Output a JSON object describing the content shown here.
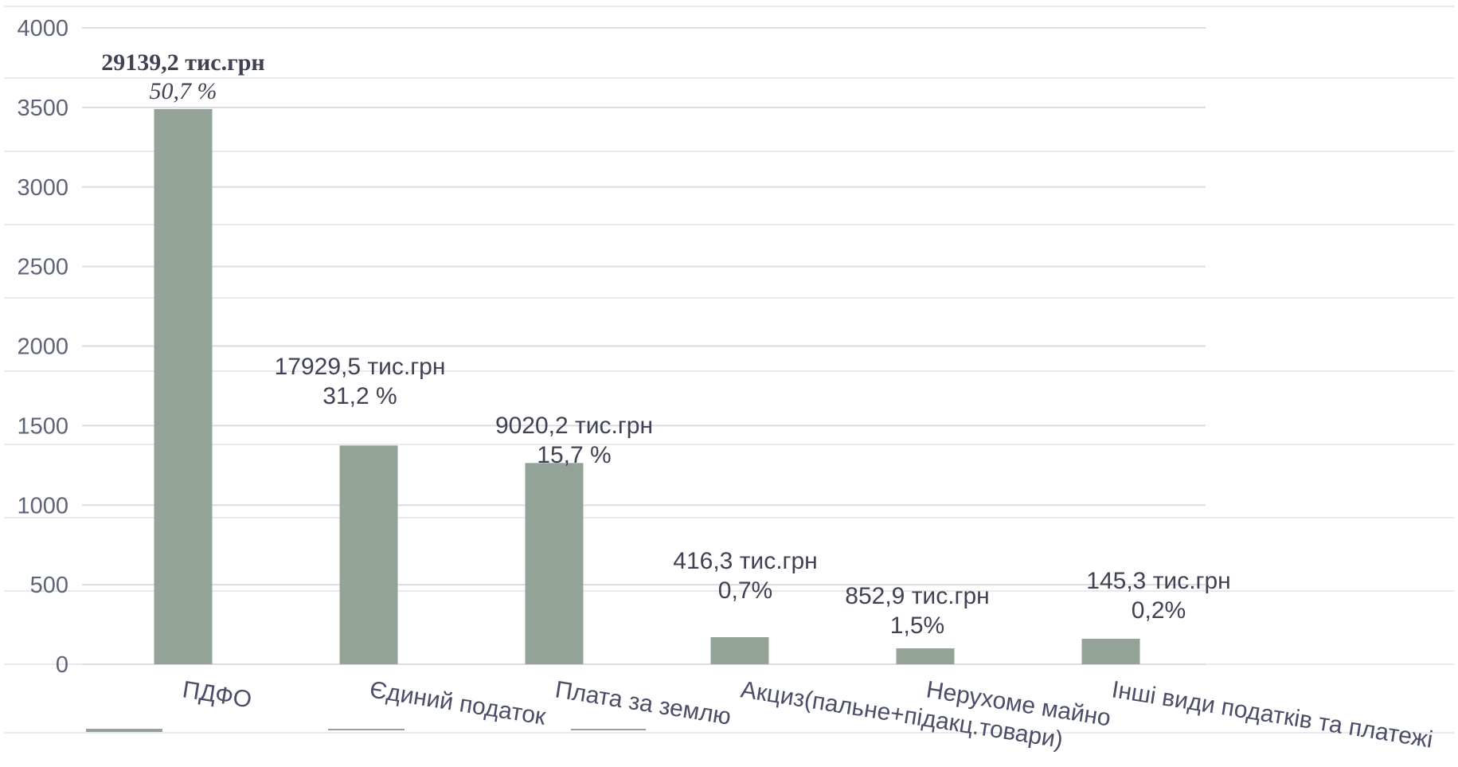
{
  "chart_data": {
    "type": "bar",
    "categories": [
      "ПДФО",
      "Єдиний податок",
      "Плата за землю",
      "Акциз(пальне+підакц.товари)",
      "Нерухоме майно",
      "Інші види податків та платежі"
    ],
    "values": [
      3490,
      1375,
      1265,
      170,
      100,
      160
    ],
    "ylim": [
      0,
      4000
    ],
    "yticks": [
      "0",
      "500",
      "1000",
      "1500",
      "2000",
      "2500",
      "3000",
      "3500",
      "4000"
    ],
    "data_labels": [
      {
        "amount": "29139,2 тис.грн",
        "percent": "50,7 %"
      },
      {
        "amount": "17929,5 тис.грн",
        "percent": "31,2 %"
      },
      {
        "amount": "9020,2 тис.грн",
        "percent": "15,7 %"
      },
      {
        "amount": "416,3 тис.грн",
        "percent": "0,7%"
      },
      {
        "amount": "852,9 тис.грн",
        "percent": "1,5%"
      },
      {
        "amount": "145,3 тис.грн",
        "percent": "0,2%"
      }
    ],
    "bar_color": "#93a397",
    "grid": true,
    "legend": "none"
  }
}
